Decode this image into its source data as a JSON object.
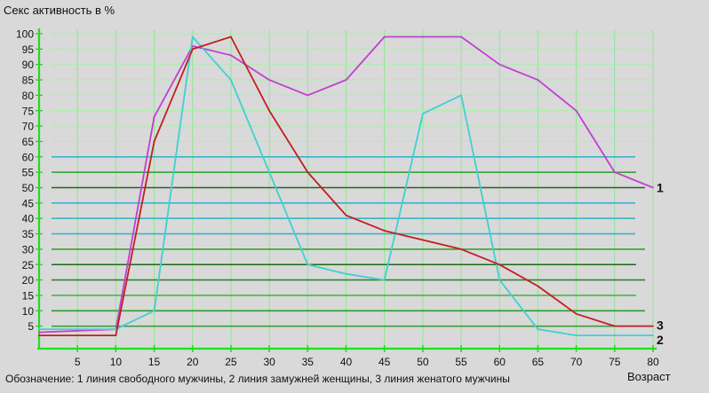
{
  "chart_data": {
    "type": "line",
    "title": "Секс активность в %",
    "xlabel": "Возраст",
    "ylabel": "",
    "caption": "Обозначение: 1 линия свободного мужчины, 2 линия замужней женщины, 3 линия женатого мужчины",
    "xlim": [
      0,
      80
    ],
    "ylim": [
      0,
      100
    ],
    "x_ticks": [
      5,
      10,
      15,
      20,
      25,
      30,
      35,
      40,
      45,
      50,
      55,
      60,
      65,
      70,
      75,
      80
    ],
    "y_ticks": [
      5,
      10,
      15,
      20,
      25,
      30,
      35,
      40,
      45,
      50,
      55,
      60,
      65,
      70,
      75,
      80,
      85,
      90,
      95,
      100
    ],
    "grid": true,
    "series": [
      {
        "label": "1",
        "color": "#c040d0",
        "label_color": "#9020a0",
        "x": [
          0,
          10,
          15,
          20,
          25,
          30,
          35,
          40,
          45,
          50,
          55,
          60,
          65,
          70,
          75,
          80
        ],
        "y": [
          3,
          4,
          73,
          96,
          93,
          85,
          80,
          85,
          99,
          99,
          99,
          90,
          85,
          75,
          55,
          50
        ]
      },
      {
        "label": "2",
        "color": "#40d0d0",
        "label_color": "#1040d0",
        "x": [
          0,
          10,
          15,
          20,
          25,
          30,
          35,
          40,
          45,
          50,
          55,
          60,
          65,
          70,
          75,
          80
        ],
        "y": [
          4,
          4,
          10,
          99,
          85,
          55,
          25,
          22,
          20,
          74,
          80,
          20,
          4,
          2,
          2,
          2
        ]
      },
      {
        "label": "3",
        "color": "#c02020",
        "label_color": "#e02020",
        "x": [
          0,
          10,
          15,
          20,
          25,
          30,
          35,
          40,
          45,
          50,
          55,
          60,
          65,
          70,
          75,
          80
        ],
        "y": [
          2,
          2,
          65,
          95,
          99,
          75,
          55,
          41,
          36,
          33,
          30,
          25,
          18,
          9,
          5,
          5
        ]
      }
    ]
  }
}
